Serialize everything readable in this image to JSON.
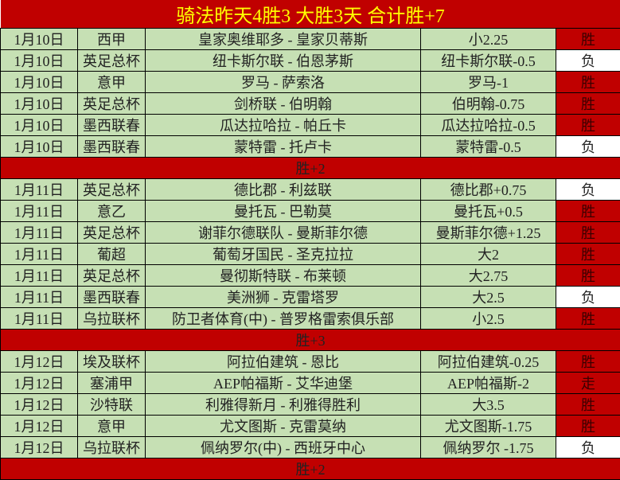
{
  "title": "骑法昨天4胜3  大胜3天  合计胜+7",
  "colors": {
    "header_bg": "#c00000",
    "title_text": "#ffff00",
    "row_bg": "#c6e0b4",
    "win_bg": "#c00000",
    "lose_bg": "#ffffff"
  },
  "groups": [
    {
      "rows": [
        {
          "date": "1月10日",
          "league": "西甲",
          "match": "皇家奥维耶多 - 皇家贝蒂斯",
          "pick": "小2.25",
          "result": "胜"
        },
        {
          "date": "1月10日",
          "league": "英足总杯",
          "match": "纽卡斯尔联 - 伯恩茅斯",
          "pick": "纽卡斯尔联-0.5",
          "result": "负"
        },
        {
          "date": "1月10日",
          "league": "意甲",
          "match": "罗马 - 萨索洛",
          "pick": "罗马-1",
          "result": "胜"
        },
        {
          "date": "1月10日",
          "league": "英足总杯",
          "match": "剑桥联 - 伯明翰",
          "pick": "伯明翰-0.75",
          "result": "胜"
        },
        {
          "date": "1月10日",
          "league": "墨西联春",
          "match": "瓜达拉哈拉 - 帕丘卡",
          "pick": "瓜达拉哈拉-0.5",
          "result": "胜"
        },
        {
          "date": "1月10日",
          "league": "墨西联春",
          "match": "蒙特雷 - 托卢卡",
          "pick": "蒙特雷-0.5",
          "result": "负"
        }
      ],
      "summary": "胜+2"
    },
    {
      "rows": [
        {
          "date": "1月11日",
          "league": "英足总杯",
          "match": "德比郡 - 利兹联",
          "pick": "德比郡+0.75",
          "result": "负"
        },
        {
          "date": "1月11日",
          "league": "意乙",
          "match": "曼托瓦 - 巴勒莫",
          "pick": "曼托瓦+0.5",
          "result": "胜"
        },
        {
          "date": "1月11日",
          "league": "英足总杯",
          "match": "谢菲尔德联队 - 曼斯菲尔德",
          "pick": "曼斯菲尔德+1.25",
          "result": "胜"
        },
        {
          "date": "1月11日",
          "league": "葡超",
          "match": "葡萄牙国民 - 圣克拉拉",
          "pick": "大2",
          "result": "胜"
        },
        {
          "date": "1月11日",
          "league": "英足总杯",
          "match": "曼彻斯特联 - 布莱顿",
          "pick": "大2.75",
          "result": "胜"
        },
        {
          "date": "1月11日",
          "league": "墨西联春",
          "match": "美洲狮 - 克雷塔罗",
          "pick": "大2.5",
          "result": "负"
        },
        {
          "date": "1月11日",
          "league": "乌拉联杯",
          "match": "防卫者体育(中) - 普罗格雷索俱乐部",
          "pick": "小2.5",
          "result": "胜"
        }
      ],
      "summary": "胜+3"
    },
    {
      "rows": [
        {
          "date": "1月12日",
          "league": "埃及联杯",
          "match": "阿拉伯建筑 - 恩比",
          "pick": "阿拉伯建筑-0.25",
          "result": "胜"
        },
        {
          "date": "1月12日",
          "league": "塞浦甲",
          "match": "AEP帕福斯 - 艾华迪堡",
          "pick": "AEP帕福斯-2",
          "result": "走"
        },
        {
          "date": "1月12日",
          "league": "沙特联",
          "match": "利雅得新月 - 利雅得胜利",
          "pick": "大3.5",
          "result": "胜"
        },
        {
          "date": "1月12日",
          "league": "意甲",
          "match": "尤文图斯 - 克雷莫纳",
          "pick": "尤文图斯-1.75",
          "result": "胜"
        },
        {
          "date": "1月12日",
          "league": "乌拉联杯",
          "match": "佩纳罗尔(中) - 西班牙中心",
          "pick": "佩纳罗尔 -1.75",
          "result": "负"
        }
      ],
      "summary": "胜+2"
    }
  ]
}
